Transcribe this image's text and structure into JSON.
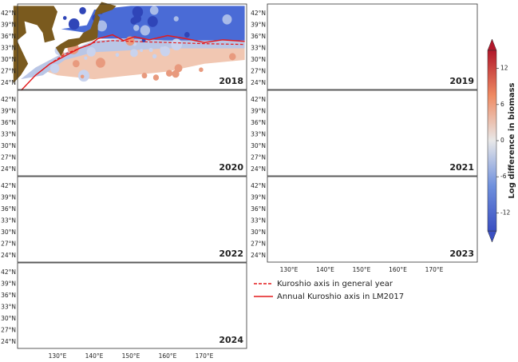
{
  "panels": [
    {
      "year": "2018"
    },
    {
      "year": "2019"
    },
    {
      "year": "2020"
    },
    {
      "year": "2021"
    },
    {
      "year": "2022"
    },
    {
      "year": "2023"
    },
    {
      "year": "2024"
    }
  ],
  "lat_labels": [
    "42°N",
    "39°N",
    "36°N",
    "33°N",
    "30°N",
    "27°N",
    "24°N"
  ],
  "lon_labels": [
    "130°E",
    "140°E",
    "150°E",
    "160°E",
    "170°E"
  ],
  "colorbar": {
    "label": "Log difference in biomass",
    "ticks": [
      12,
      6,
      0,
      -6,
      -12
    ],
    "lim": [
      -15,
      15
    ]
  },
  "legend": {
    "general": "Kuroshio axis in general year",
    "annual": "Annual Kuroshio axis in LM2017"
  }
}
